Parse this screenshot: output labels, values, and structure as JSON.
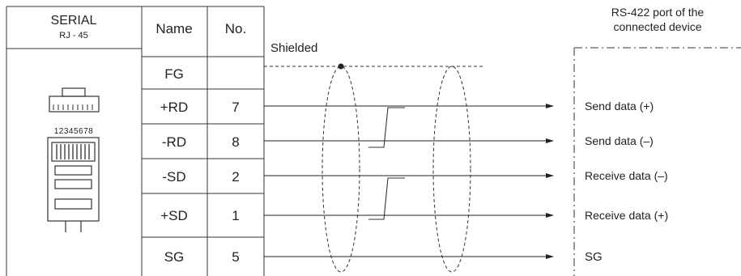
{
  "header": {
    "serial_title": "SERIAL",
    "serial_subtitle": "RJ - 45",
    "name_col": "Name",
    "no_col": "No."
  },
  "pin_strip_label": "12345678",
  "shield_label": "Shielded",
  "device_title": [
    "RS-422 port of the",
    "connected device"
  ],
  "rows": [
    {
      "name": "FG",
      "no": ""
    },
    {
      "name": "+RD",
      "no": "7",
      "signal": "Send data (+)"
    },
    {
      "name": "-RD",
      "no": "8",
      "signal": "Send data (–)"
    },
    {
      "name": "-SD",
      "no": "2",
      "signal": "Receive data (–)"
    },
    {
      "name": "+SD",
      "no": "1",
      "signal": "Receive data (+)"
    },
    {
      "name": "SG",
      "no": "5",
      "signal": "SG"
    }
  ]
}
